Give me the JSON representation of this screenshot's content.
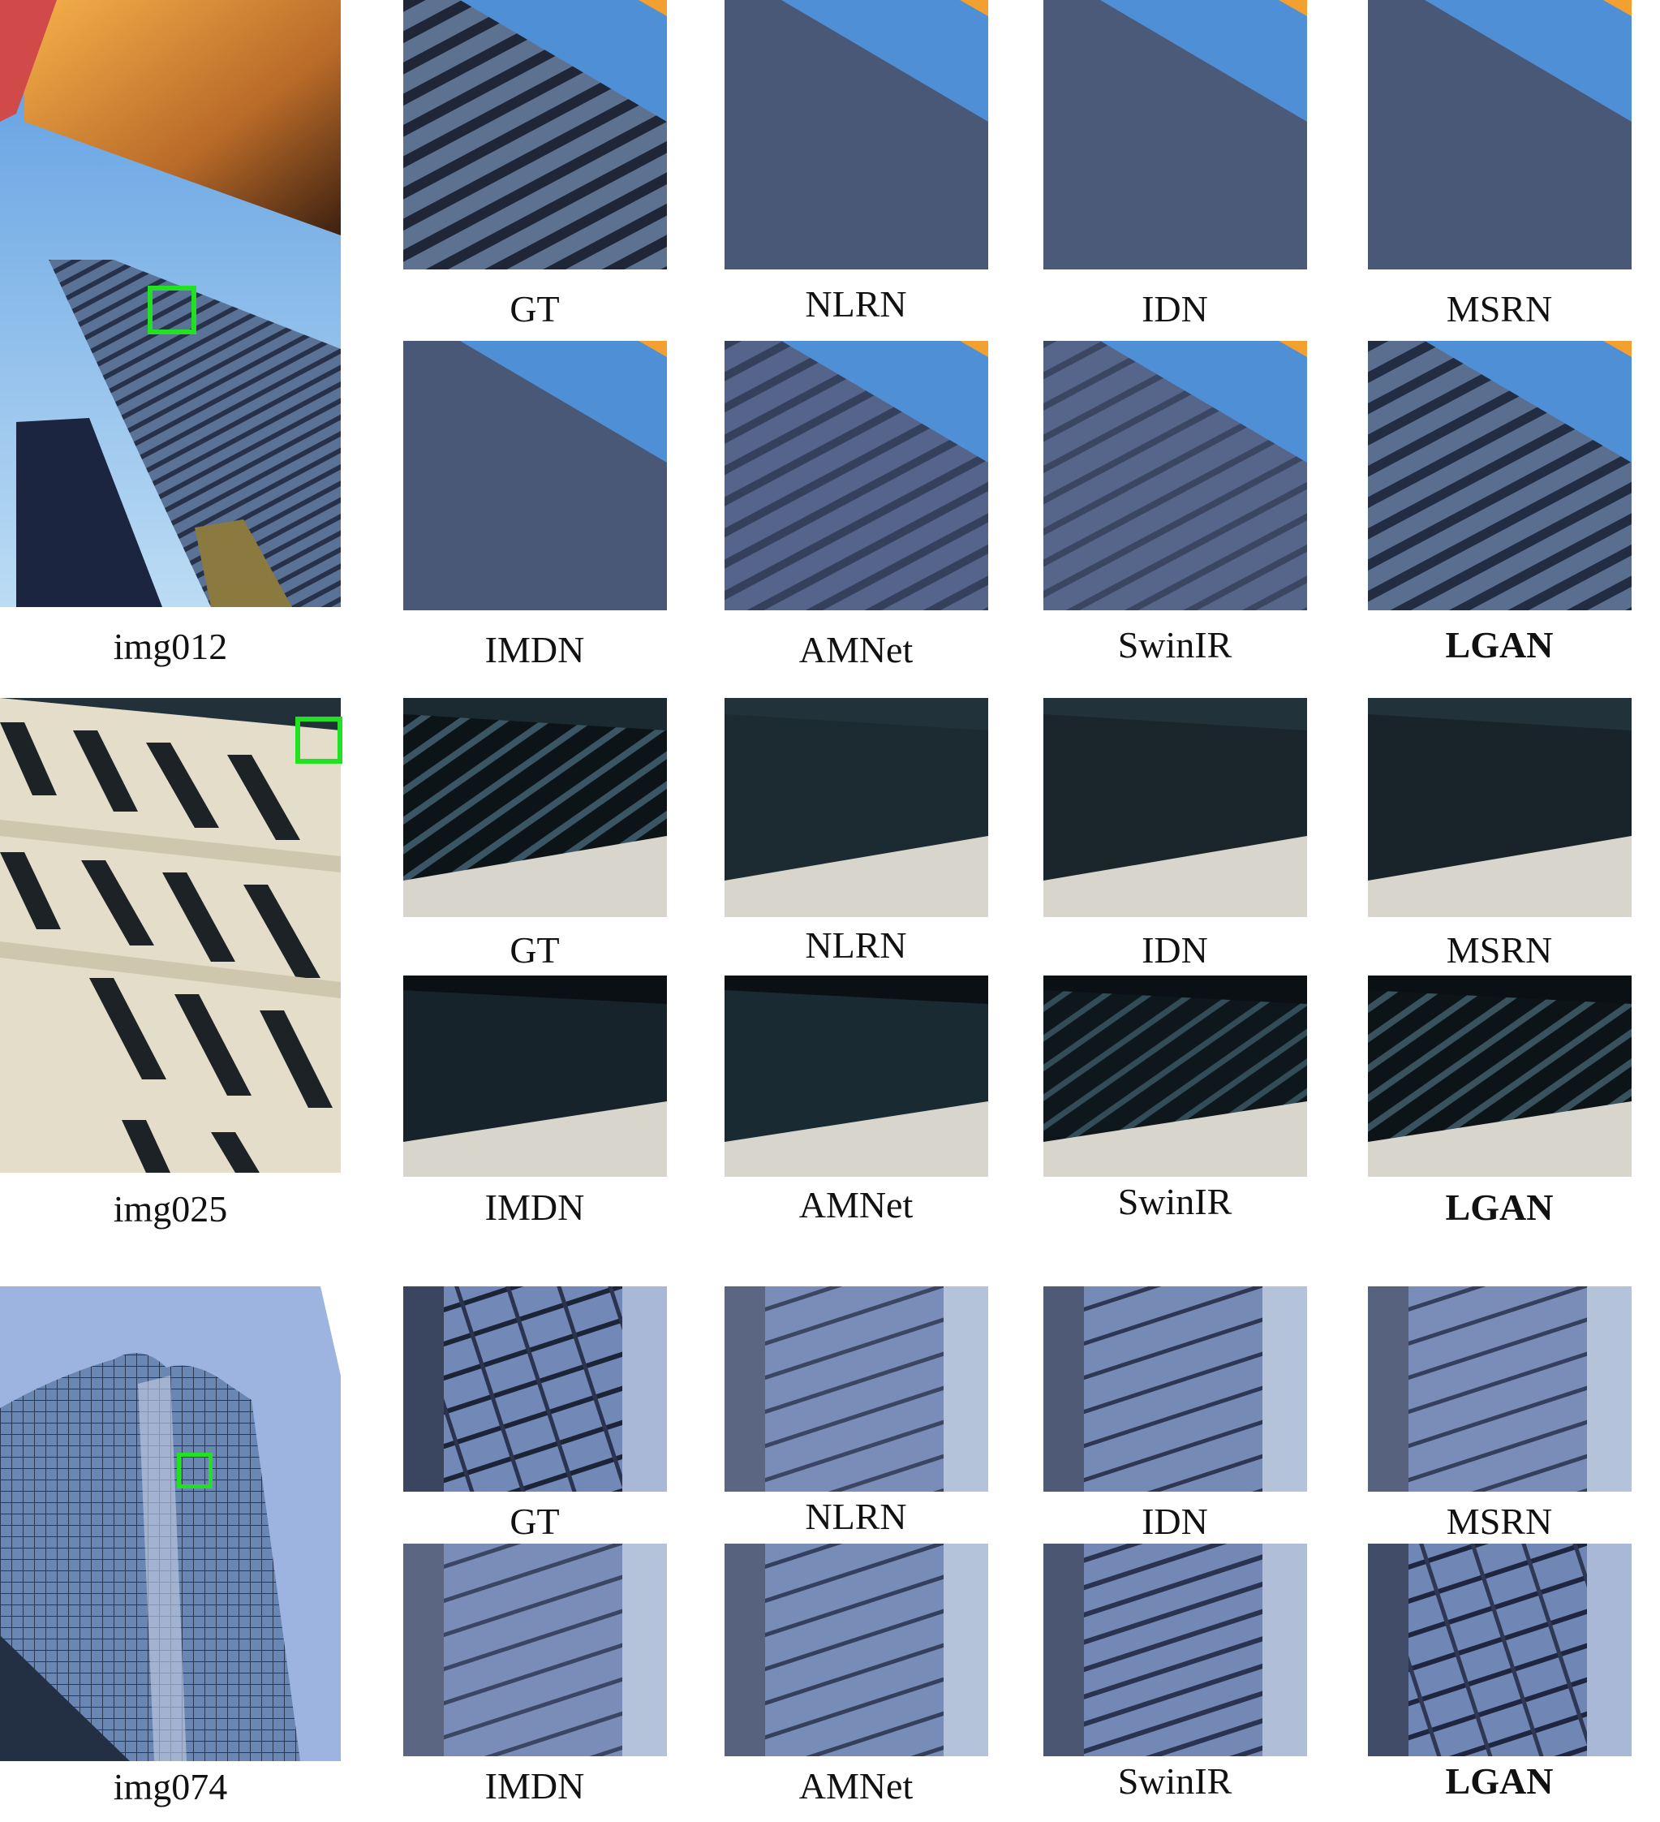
{
  "images": [
    {
      "name": "img012",
      "methods_top": [
        "GT",
        "NLRN",
        "IDN",
        "MSRN"
      ],
      "methods_bottom": [
        "IMDN",
        "AMNet",
        "SwinIR",
        "LGAN"
      ]
    },
    {
      "name": "img025",
      "methods_top": [
        "GT",
        "NLRN",
        "IDN",
        "MSRN"
      ],
      "methods_bottom": [
        "IMDN",
        "AMNet",
        "SwinIR",
        "LGAN"
      ]
    },
    {
      "name": "img074",
      "methods_top": [
        "GT",
        "NLRN",
        "IDN",
        "MSRN"
      ],
      "methods_bottom": [
        "IMDN",
        "AMNet",
        "SwinIR",
        "LGAN"
      ]
    }
  ],
  "highlight_color": "#22e022",
  "bold_method": "LGAN"
}
